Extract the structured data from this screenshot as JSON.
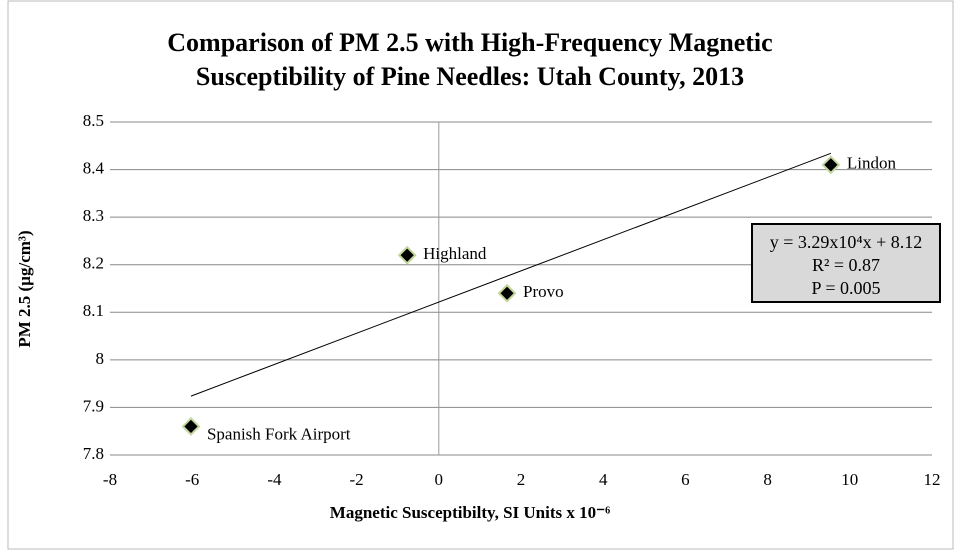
{
  "chart_data": {
    "type": "scatter",
    "title": "Comparison of PM 2.5 with High-Frequency Magnetic Susceptibility of Pine Needles: Utah County, 2013",
    "x_label": "Magnetic Susceptibilty, SI Units x 10⁻⁶",
    "y_label": "PM 2.5 (µg/cm³)",
    "series": [
      {
        "color": "#000000",
        "edge_color": "#c3d69b",
        "x": [
          -6.03,
          -0.77,
          1.66,
          9.54
        ],
        "values": [
          7.86,
          8.22,
          8.14,
          8.41
        ],
        "labels": [
          "Spanish Fork Airport",
          "Highland",
          "Provo",
          "Lindon"
        ]
      }
    ],
    "trendline": true,
    "annotation": [
      "y = 3.29x10⁴x + 8.12",
      "R² = 0.87",
      "P = 0.005"
    ],
    "xlim": [
      -8,
      12
    ],
    "xticks": [
      -8,
      -6,
      -4,
      -2,
      0,
      2,
      4,
      6,
      8,
      10,
      12
    ],
    "ylim": [
      7.8,
      8.5
    ],
    "yticks": [
      7.8,
      7.9,
      8,
      8.1,
      8.2,
      8.3,
      8.4,
      8.5
    ],
    "grid": true
  }
}
